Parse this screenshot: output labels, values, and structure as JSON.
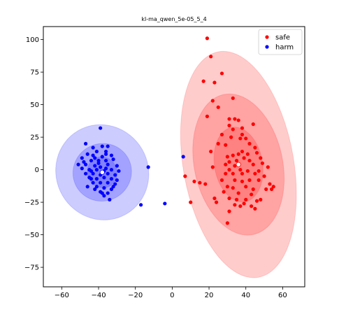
{
  "chart_data": {
    "type": "scatter",
    "title": "kl-ma_qwen_5e-05_5_4",
    "xlabel": "",
    "ylabel": "",
    "xlim": [
      -70,
      72
    ],
    "ylim": [
      -90,
      110
    ],
    "xticks": [
      -60,
      -40,
      -20,
      0,
      20,
      40,
      60
    ],
    "yticks": [
      -75,
      -50,
      -25,
      0,
      25,
      50,
      75,
      100
    ],
    "xtick_labels": [
      "−60",
      "−40",
      "−20",
      "0",
      "20",
      "40",
      "60"
    ],
    "ytick_labels": [
      "−75",
      "−50",
      "−25",
      "0",
      "25",
      "50",
      "75",
      "100"
    ],
    "grid": false,
    "legend_position": "top-right",
    "series": [
      {
        "name": "safe",
        "color": "#ff0000",
        "center": [
          36,
          4
        ],
        "ellipses": [
          {
            "sd": 1,
            "rx": 13,
            "ry": 29,
            "angle_deg": -10
          },
          {
            "sd": 2,
            "rx": 24,
            "ry": 55,
            "angle_deg": -12
          },
          {
            "sd": 3,
            "rx": 30,
            "ry": 88,
            "angle_deg": -10
          }
        ],
        "points": [
          [
            19,
            101
          ],
          [
            21,
            87
          ],
          [
            27,
            74
          ],
          [
            17,
            68
          ],
          [
            23,
            67
          ],
          [
            33,
            55
          ],
          [
            22,
            53
          ],
          [
            25,
            48
          ],
          [
            19,
            41
          ],
          [
            31,
            39
          ],
          [
            34,
            39
          ],
          [
            36,
            38
          ],
          [
            31,
            34
          ],
          [
            33,
            31
          ],
          [
            38,
            32
          ],
          [
            44,
            35
          ],
          [
            27,
            27
          ],
          [
            38,
            27
          ],
          [
            32,
            25
          ],
          [
            37,
            24
          ],
          [
            40,
            24
          ],
          [
            25,
            20
          ],
          [
            29,
            19
          ],
          [
            42,
            20
          ],
          [
            45,
            17
          ],
          [
            46,
            13
          ],
          [
            36,
            12
          ],
          [
            38,
            14
          ],
          [
            41,
            12
          ],
          [
            21,
            14
          ],
          [
            30,
            10
          ],
          [
            33,
            11
          ],
          [
            39,
            9
          ],
          [
            48,
            9
          ],
          [
            31,
            6
          ],
          [
            35,
            7
          ],
          [
            42,
            7
          ],
          [
            29,
            4
          ],
          [
            34,
            3
          ],
          [
            44,
            4
          ],
          [
            49,
            5
          ],
          [
            22,
            2
          ],
          [
            31,
            0
          ],
          [
            37,
            0
          ],
          [
            41,
            -1
          ],
          [
            47,
            -1
          ],
          [
            52,
            2
          ],
          [
            29,
            -3
          ],
          [
            33,
            -3
          ],
          [
            38,
            -3
          ],
          [
            45,
            -3
          ],
          [
            50,
            -5
          ],
          [
            7,
            -5
          ],
          [
            12,
            -9
          ],
          [
            15,
            -10
          ],
          [
            18,
            -11
          ],
          [
            27,
            -8
          ],
          [
            34,
            -8
          ],
          [
            38,
            -9
          ],
          [
            42,
            -8
          ],
          [
            47,
            -8
          ],
          [
            53,
            -11
          ],
          [
            55,
            -13
          ],
          [
            30,
            -13
          ],
          [
            33,
            -14
          ],
          [
            40,
            -13
          ],
          [
            44,
            -15
          ],
          [
            51,
            -15
          ],
          [
            54,
            -15
          ],
          [
            28,
            -17
          ],
          [
            36,
            -18
          ],
          [
            43,
            -19
          ],
          [
            23,
            -22
          ],
          [
            31,
            -22
          ],
          [
            35,
            -23
          ],
          [
            40,
            -23
          ],
          [
            46,
            -24
          ],
          [
            48,
            -23
          ],
          [
            10,
            -25
          ],
          [
            24,
            -25
          ],
          [
            34,
            -27
          ],
          [
            39,
            -26
          ],
          [
            43,
            -28
          ],
          [
            37,
            -28
          ],
          [
            31,
            -32
          ],
          [
            45,
            -30
          ],
          [
            30,
            -41
          ]
        ]
      },
      {
        "name": "harm",
        "color": "#0000ff",
        "center": [
          -38,
          -2
        ],
        "ellipses": [
          {
            "sd": 1,
            "rx": 8,
            "ry": 12,
            "angle_deg": -25
          },
          {
            "sd": 2,
            "rx": 16,
            "ry": 22,
            "angle_deg": -28
          },
          {
            "sd": 3,
            "rx": 25,
            "ry": 37,
            "angle_deg": -30
          }
        ],
        "points": [
          [
            -39,
            32
          ],
          [
            -47,
            20
          ],
          [
            -43,
            17
          ],
          [
            -38,
            18
          ],
          [
            -35,
            18
          ],
          [
            -41,
            14
          ],
          [
            -36,
            14
          ],
          [
            -46,
            12
          ],
          [
            -43,
            11
          ],
          [
            -38,
            10
          ],
          [
            -33,
            11
          ],
          [
            -49,
            9
          ],
          [
            -44,
            7
          ],
          [
            -40,
            7
          ],
          [
            -36,
            7
          ],
          [
            -32,
            8
          ],
          [
            -51,
            4
          ],
          [
            -47,
            4
          ],
          [
            -42,
            3
          ],
          [
            -39,
            2
          ],
          [
            -35,
            4
          ],
          [
            -30,
            3
          ],
          [
            -49,
            1
          ],
          [
            -45,
            0
          ],
          [
            -41,
            0
          ],
          [
            -37,
            -1
          ],
          [
            -33,
            0
          ],
          [
            -29,
            -1
          ],
          [
            -47,
            -3
          ],
          [
            -43,
            -3
          ],
          [
            -39,
            -4
          ],
          [
            -35,
            -3
          ],
          [
            -31,
            -4
          ],
          [
            -45,
            -6
          ],
          [
            -41,
            -7
          ],
          [
            -37,
            -6
          ],
          [
            -33,
            -7
          ],
          [
            -43,
            -10
          ],
          [
            -39,
            -10
          ],
          [
            -35,
            -10
          ],
          [
            -31,
            -11
          ],
          [
            -41,
            -13
          ],
          [
            -37,
            -14
          ],
          [
            -33,
            -15
          ],
          [
            -39,
            -17
          ],
          [
            -35,
            -18
          ],
          [
            -37,
            -20
          ],
          [
            -34,
            -23
          ],
          [
            -46,
            -13
          ],
          [
            -44,
            -7
          ],
          [
            -40,
            5
          ],
          [
            -36,
            1
          ],
          [
            -42,
            -15
          ],
          [
            -13,
            2
          ],
          [
            -17,
            -27
          ],
          [
            -4,
            -26
          ],
          [
            6,
            10
          ],
          [
            -44,
            -1
          ],
          [
            -38,
            -18
          ],
          [
            -32,
            -13
          ],
          [
            -48,
            6
          ],
          [
            -36,
            12
          ],
          [
            -30,
            -8
          ],
          [
            -42,
            9
          ]
        ]
      }
    ]
  }
}
